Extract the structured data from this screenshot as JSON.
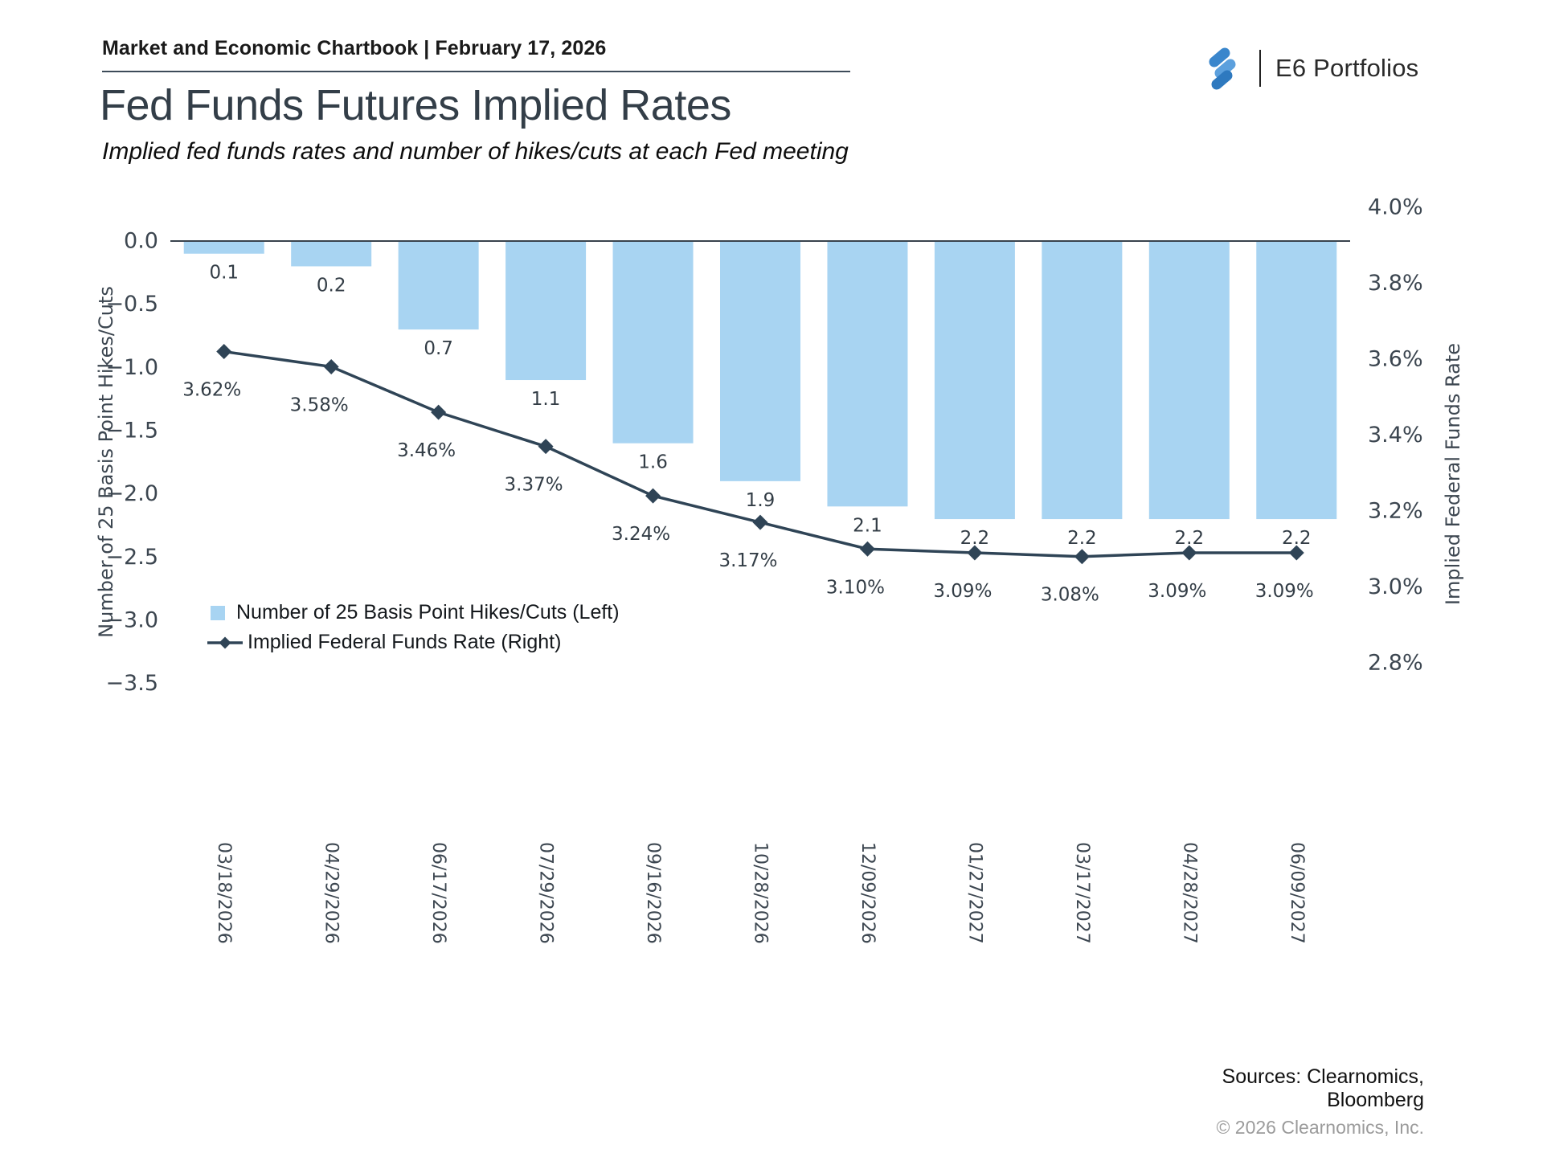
{
  "header": {
    "chartbook_line": "Market and Economic Chartbook | February 17, 2026",
    "brand": "E6 Portfolios"
  },
  "title": "Fed Funds Futures Implied Rates",
  "subtitle": "Implied fed funds rates and number of hikes/cuts at each Fed meeting",
  "colors": {
    "bar": "#a8d4f2",
    "line": "#2f4456",
    "zero_line": "#39434d",
    "tick": "#3c4650",
    "value_label": "#333d46",
    "logo_blue_dark": "#2e79bf",
    "logo_blue_light": "#5ca0dd",
    "copyright_gray": "#9b9b9b"
  },
  "chart_data": {
    "type": "bar",
    "subtype": "bar+line dual axis",
    "categories": [
      "03/18/2026",
      "04/29/2026",
      "06/17/2026",
      "07/29/2026",
      "09/16/2026",
      "10/28/2026",
      "12/09/2026",
      "01/27/2027",
      "03/17/2027",
      "04/28/2027",
      "06/09/2027"
    ],
    "series": [
      {
        "name": "Number of 25 Basis Point Hikes/Cuts (Left)",
        "type": "bar",
        "axis": "left",
        "values": [
          -0.1,
          -0.2,
          -0.7,
          -1.1,
          -1.6,
          -1.9,
          -2.1,
          -2.2,
          -2.2,
          -2.2,
          -2.2
        ],
        "labels": [
          "0.1",
          "0.2",
          "0.7",
          "1.1",
          "1.6",
          "1.9",
          "2.1",
          "2.2",
          "2.2",
          "2.2",
          "2.2"
        ]
      },
      {
        "name": "Implied Federal Funds Rate (Right)",
        "type": "line",
        "axis": "right",
        "values": [
          3.62,
          3.58,
          3.46,
          3.37,
          3.24,
          3.17,
          3.1,
          3.09,
          3.08,
          3.09,
          3.09
        ],
        "labels": [
          "3.62%",
          "3.58%",
          "3.46%",
          "3.37%",
          "3.24%",
          "3.17%",
          "3.10%",
          "3.09%",
          "3.08%",
          "3.09%",
          "3.09%"
        ]
      }
    ],
    "left_axis": {
      "label": "Number of 25 Basis Point Hikes/Cuts",
      "tick_values": [
        0,
        -0.5,
        -1,
        -1.5,
        -2,
        -2.5,
        -3,
        -3.5
      ],
      "tick_labels": [
        "0.0",
        "−0.5",
        "−1.0",
        "−1.5",
        "−2.0",
        "−2.5",
        "−3.0",
        "−3.5"
      ]
    },
    "right_axis": {
      "label": "Implied Federal Funds Rate",
      "tick_values": [
        4.0,
        3.8,
        3.6,
        3.4,
        3.2,
        3.0,
        2.8
      ],
      "tick_labels": [
        "4.0%",
        "3.8%",
        "3.6%",
        "3.4%",
        "3.2%",
        "3.0%",
        "2.8%"
      ]
    },
    "legend_position": "inside lower-left",
    "grid": "off"
  },
  "footer": {
    "sources_line1": "Sources: Clearnomics,",
    "sources_line2": "Bloomberg",
    "copyright": "© 2026 Clearnomics, Inc."
  }
}
